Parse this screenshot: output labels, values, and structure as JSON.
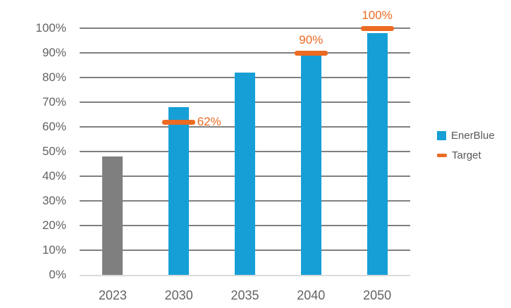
{
  "chart_data": {
    "type": "bar",
    "title": "",
    "categories": [
      "2023",
      "2030",
      "2035",
      "2040",
      "2050"
    ],
    "series": [
      {
        "name": "EnerBlue",
        "values": [
          48,
          68,
          82,
          89,
          98
        ]
      },
      {
        "name": "Target",
        "values": [
          null,
          62,
          null,
          90,
          100
        ]
      }
    ],
    "bar_colors": [
      "#7F7F7F",
      "#169FD6",
      "#169FD6",
      "#169FD6",
      "#169FD6"
    ],
    "targets": [
      {
        "category": "2030",
        "value": 62,
        "label": "62%",
        "label_pos": "right"
      },
      {
        "category": "2040",
        "value": 90,
        "label": "90%",
        "label_pos": "above"
      },
      {
        "category": "2050",
        "value": 100,
        "label": "100%",
        "label_pos": "above"
      }
    ],
    "xlabel": "",
    "ylabel": "",
    "ylim": [
      0,
      100
    ],
    "yticks": [
      0,
      10,
      20,
      30,
      40,
      50,
      60,
      70,
      80,
      90,
      100
    ],
    "ytick_labels": [
      "0%",
      "10%",
      "20%",
      "30%",
      "40%",
      "50%",
      "60%",
      "70%",
      "80%",
      "90%",
      "100%"
    ],
    "grid": "horizontal",
    "legend_position": "right",
    "legend": [
      {
        "label": "EnerBlue",
        "swatch": "square",
        "color": "#169FD6"
      },
      {
        "label": "Target",
        "swatch": "dash",
        "color": "#EC6B23"
      }
    ],
    "colors": {
      "bar_blue": "#169FD6",
      "bar_gray": "#7F7F7F",
      "target_orange": "#EC6B23",
      "gridline": "#808080",
      "axis_line": "#DBDBDB",
      "tick_text": "#636363"
    }
  }
}
